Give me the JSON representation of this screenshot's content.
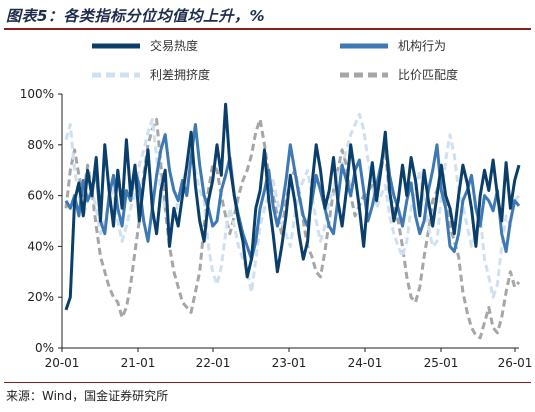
{
  "header": {
    "title": "图表5：各类指标分位均值均上升，%",
    "source": "来源：Wind，国金证券研究所"
  },
  "chart_data": {
    "type": "line",
    "title": "图表5：各类指标分位均值均上升，%",
    "xlabel": "",
    "ylabel": "",
    "x_ticks": [
      "20-01",
      "21-01",
      "22-01",
      "23-01",
      "24-01",
      "25-01",
      "26-01"
    ],
    "y_ticks": [
      "0%",
      "20%",
      "40%",
      "60%",
      "80%",
      "100%"
    ],
    "ylim": [
      0,
      100
    ],
    "grid": false,
    "legend_position": "top",
    "series": [
      {
        "name": "交易热度",
        "color": "#0b3f6b",
        "style": "solid",
        "values": [
          15,
          20,
          58,
          65,
          52,
          70,
          60,
          75,
          50,
          80,
          62,
          48,
          70,
          55,
          82,
          60,
          72,
          50,
          65,
          78,
          55,
          45,
          62,
          70,
          40,
          55,
          48,
          60,
          72,
          85,
          64,
          50,
          42,
          58,
          66,
          80,
          68,
          96,
          72,
          60,
          50,
          42,
          28,
          35,
          55,
          62,
          78,
          58,
          45,
          30,
          40,
          52,
          68,
          58,
          45,
          35,
          42,
          64,
          80,
          70,
          55,
          62,
          75,
          58,
          48,
          62,
          80,
          68,
          55,
          40,
          60,
          73,
          58,
          70,
          85,
          62,
          50,
          58,
          72,
          60,
          75,
          66,
          52,
          70,
          58,
          48,
          60,
          72,
          60,
          55,
          45,
          60,
          72,
          65,
          55,
          40,
          60,
          70,
          62,
          74,
          60,
          50,
          73,
          55,
          66,
          72
        ]
      },
      {
        "name": "机构行为",
        "color": "#3e79b6",
        "style": "solid",
        "values": [
          58,
          55,
          60,
          52,
          66,
          58,
          62,
          70,
          50,
          45,
          60,
          68,
          55,
          48,
          62,
          58,
          70,
          64,
          50,
          42,
          55,
          68,
          78,
          84,
          70,
          62,
          58,
          66,
          60,
          75,
          88,
          72,
          60,
          55,
          48,
          50,
          62,
          68,
          75,
          60,
          52,
          45,
          40,
          35,
          42,
          55,
          62,
          70,
          56,
          48,
          55,
          66,
          80,
          70,
          60,
          52,
          48,
          58,
          68,
          62,
          55,
          48,
          45,
          58,
          72,
          66,
          60,
          70,
          74,
          62,
          50,
          56,
          64,
          72,
          82,
          68,
          60,
          55,
          48,
          58,
          65,
          52,
          45,
          50,
          62,
          70,
          80,
          62,
          55,
          40,
          38,
          45,
          58,
          62,
          68,
          55,
          48,
          60,
          58,
          54,
          62,
          45,
          38,
          50,
          58,
          56
        ]
      },
      {
        "name": "利差拥挤度",
        "color": "#cfe0f1",
        "style": "dashed",
        "values": [
          82,
          88,
          70,
          60,
          52,
          58,
          62,
          55,
          45,
          50,
          58,
          62,
          50,
          42,
          48,
          55,
          60,
          72,
          78,
          85,
          90,
          75,
          62,
          55,
          48,
          50,
          58,
          66,
          70,
          75,
          70,
          62,
          58,
          40,
          30,
          25,
          32,
          45,
          55,
          48,
          40,
          35,
          30,
          22,
          35,
          48,
          55,
          60,
          66,
          58,
          50,
          45,
          40,
          52,
          62,
          66,
          70,
          60,
          50,
          42,
          48,
          58,
          62,
          70,
          72,
          78,
          84,
          88,
          92,
          86,
          74,
          66,
          55,
          60,
          64,
          52,
          45,
          40,
          36,
          42,
          55,
          62,
          70,
          58,
          48,
          40,
          42,
          60,
          74,
          84,
          76,
          62,
          56,
          48,
          40,
          45,
          52,
          35,
          28,
          20,
          25,
          40,
          52,
          48,
          58,
          60
        ]
      },
      {
        "name": "比价匹配度",
        "color": "#a6a6a6",
        "style": "dashed",
        "values": [
          55,
          70,
          78,
          68,
          60,
          72,
          62,
          48,
          36,
          30,
          24,
          20,
          18,
          12,
          16,
          25,
          38,
          50,
          68,
          80,
          86,
          90,
          72,
          55,
          40,
          30,
          24,
          18,
          16,
          14,
          22,
          30,
          48,
          62,
          72,
          70,
          60,
          52,
          45,
          52,
          60,
          66,
          70,
          76,
          85,
          90,
          80,
          68,
          60,
          52,
          45,
          58,
          66,
          70,
          62,
          50,
          40,
          36,
          30,
          28,
          38,
          50,
          62,
          70,
          78,
          72,
          60,
          52,
          56,
          60,
          62,
          64,
          58,
          70,
          78,
          60,
          55,
          50,
          40,
          28,
          20,
          18,
          24,
          36,
          46,
          58,
          62,
          68,
          58,
          48,
          42,
          36,
          22,
          14,
          8,
          5,
          4,
          10,
          16,
          8,
          6,
          12,
          22,
          30,
          24,
          26
        ]
      }
    ]
  }
}
